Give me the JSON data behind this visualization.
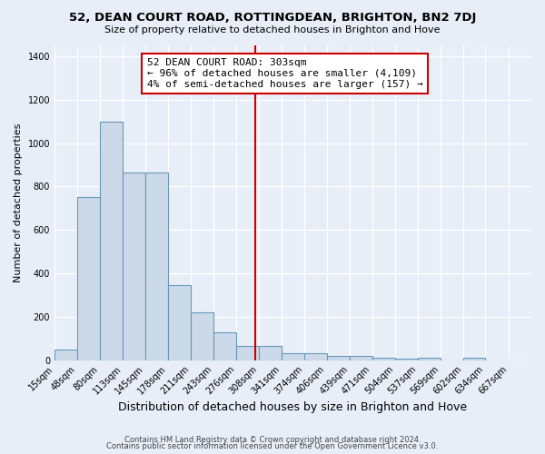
{
  "title": "52, DEAN COURT ROAD, ROTTINGDEAN, BRIGHTON, BN2 7DJ",
  "subtitle": "Size of property relative to detached houses in Brighton and Hove",
  "xlabel": "Distribution of detached houses by size in Brighton and Hove",
  "ylabel": "Number of detached properties",
  "bar_labels": [
    "15sqm",
    "48sqm",
    "80sqm",
    "113sqm",
    "145sqm",
    "178sqm",
    "211sqm",
    "243sqm",
    "276sqm",
    "308sqm",
    "341sqm",
    "374sqm",
    "406sqm",
    "439sqm",
    "471sqm",
    "504sqm",
    "537sqm",
    "569sqm",
    "602sqm",
    "634sqm",
    "667sqm"
  ],
  "bin_starts": [
    15,
    48,
    80,
    113,
    145,
    178,
    211,
    243,
    276,
    308,
    341,
    374,
    406,
    439,
    471,
    504,
    537,
    569,
    602,
    634,
    667
  ],
  "actual_heights": [
    50,
    750,
    1100,
    865,
    865,
    345,
    220,
    130,
    65,
    65,
    30,
    30,
    20,
    20,
    10,
    5,
    12,
    0,
    12,
    0
  ],
  "property_line_x": 303,
  "annotation_title": "52 DEAN COURT ROAD: 303sqm",
  "annotation_line1": "← 96% of detached houses are smaller (4,109)",
  "annotation_line2": "4% of semi-detached houses are larger (157) →",
  "bar_color": "#ccd9e8",
  "bar_edge_color": "#6699bb",
  "line_color": "#cc0000",
  "annotation_box_facecolor": "#ffffff",
  "annotation_box_edgecolor": "#cc0000",
  "bg_color": "#e8eef8",
  "grid_color": "#c8d4e4",
  "title_color": "#000000",
  "footer1": "Contains HM Land Registry data © Crown copyright and database right 2024.",
  "footer2": "Contains public sector information licensed under the Open Government Licence v3.0.",
  "ylim": [
    0,
    1450
  ],
  "title_fontsize": 9.5,
  "subtitle_fontsize": 8,
  "tick_fontsize": 7,
  "ylabel_fontsize": 8,
  "xlabel_fontsize": 9,
  "annotation_fontsize": 8,
  "footer_fontsize": 6
}
